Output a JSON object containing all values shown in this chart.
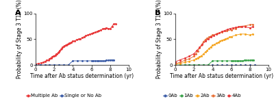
{
  "panel_A": {
    "title": "A",
    "xlabel": "Time after Ab status determination (yr)",
    "ylabel": "Probability of Stage 3 T1D (%)",
    "xlim": [
      0,
      10
    ],
    "ylim": [
      0,
      100
    ],
    "xticks": [
      0,
      2,
      4,
      6,
      8,
      10
    ],
    "yticks": [
      0,
      50,
      100
    ],
    "series": {
      "Multiple Ab": {
        "color": "#e8393a",
        "x": [
          0.0,
          0.3,
          0.6,
          0.8,
          1.0,
          1.2,
          1.4,
          1.5,
          1.6,
          1.7,
          1.8,
          1.9,
          2.0,
          2.1,
          2.2,
          2.3,
          2.4,
          2.5,
          2.6,
          2.7,
          2.8,
          2.9,
          3.0,
          3.1,
          3.2,
          3.3,
          3.4,
          3.5,
          3.6,
          3.7,
          3.8,
          4.0,
          4.2,
          4.4,
          4.6,
          4.8,
          5.0,
          5.2,
          5.4,
          5.6,
          5.8,
          6.0,
          6.2,
          6.4,
          6.6,
          6.8,
          7.0,
          7.2,
          7.4,
          7.6,
          7.8,
          8.0,
          8.2,
          8.4,
          8.6
        ],
        "y": [
          2,
          3,
          4,
          5,
          7,
          9,
          10,
          12,
          13,
          14,
          16,
          17,
          18,
          19,
          21,
          22,
          24,
          26,
          28,
          30,
          32,
          34,
          36,
          37,
          38,
          39,
          40,
          41,
          42,
          43,
          44,
          46,
          47,
          49,
          50,
          51,
          53,
          55,
          57,
          58,
          60,
          61,
          62,
          64,
          65,
          67,
          68,
          70,
          71,
          72,
          71,
          70,
          75,
          80,
          80
        ]
      },
      "Single or No Ab": {
        "color": "#3f5fa8",
        "x": [
          0.0,
          0.5,
          1.0,
          1.5,
          2.0,
          2.5,
          3.0,
          3.5,
          4.0,
          4.5,
          5.0,
          5.5,
          6.0,
          6.2,
          6.4,
          6.6,
          6.8,
          7.0,
          7.2,
          7.4,
          7.6,
          7.8,
          8.0,
          8.2,
          8.4
        ],
        "y": [
          0,
          0,
          0,
          0,
          0,
          0,
          0,
          0,
          8,
          8,
          8,
          8,
          8,
          8,
          8,
          8,
          8,
          8,
          8,
          8,
          9,
          9,
          10,
          10,
          10
        ]
      }
    },
    "legend": [
      "Multiple Ab",
      "Single or No Ab"
    ]
  },
  "panel_B": {
    "title": "B",
    "xlabel": "Time after Ab status determination (yr)",
    "ylabel": "Probability of Stage 3 T1D (%)",
    "xlim": [
      0,
      10
    ],
    "ylim": [
      0,
      100
    ],
    "xticks": [
      0,
      2,
      4,
      6,
      8,
      10
    ],
    "yticks": [
      0,
      50,
      100
    ],
    "series": {
      "0Ab": {
        "color": "#3f5fa8",
        "x": [
          0.0,
          0.5,
          1.0,
          1.5,
          2.0,
          2.5,
          3.0,
          3.5,
          4.0,
          4.5,
          5.0,
          5.5,
          6.0,
          6.5,
          7.0,
          7.5,
          8.0,
          8.5
        ],
        "y": [
          0,
          0,
          0,
          0,
          0,
          0,
          0,
          0,
          0,
          0,
          0,
          0,
          0,
          0,
          0,
          0,
          0,
          0
        ]
      },
      "1Ab": {
        "color": "#3da44d",
        "x": [
          0.0,
          0.5,
          1.0,
          1.5,
          2.0,
          2.5,
          3.0,
          3.5,
          4.0,
          4.5,
          5.0,
          5.5,
          6.0,
          6.2,
          6.4,
          6.6,
          6.8,
          7.0,
          7.2,
          7.4,
          7.6,
          7.8,
          8.0,
          8.2,
          8.4
        ],
        "y": [
          0,
          0,
          0,
          0,
          0,
          0,
          0,
          0,
          8,
          8,
          8,
          8,
          8,
          8,
          8,
          8,
          8,
          8,
          8,
          9,
          9,
          9,
          9,
          10,
          10
        ]
      },
      "2Ab": {
        "color": "#f5a623",
        "x": [
          0.0,
          0.5,
          1.0,
          1.5,
          2.0,
          2.2,
          2.4,
          2.6,
          2.8,
          3.0,
          3.2,
          3.4,
          3.6,
          3.8,
          4.0,
          4.2,
          4.4,
          4.6,
          4.8,
          5.0,
          5.2,
          5.4,
          5.6,
          5.8,
          6.0,
          6.5,
          7.0,
          7.5,
          8.0,
          8.3
        ],
        "y": [
          2,
          3,
          5,
          7,
          10,
          12,
          14,
          16,
          18,
          21,
          25,
          28,
          32,
          35,
          38,
          40,
          42,
          44,
          46,
          48,
          49,
          51,
          52,
          54,
          55,
          58,
          60,
          60,
          58,
          60
        ]
      },
      "3Ab": {
        "color": "#e8733a",
        "x": [
          0.0,
          0.5,
          1.0,
          1.5,
          2.0,
          2.2,
          2.4,
          2.6,
          2.8,
          3.0,
          3.2,
          3.4,
          3.6,
          3.8,
          4.0,
          4.5,
          5.0,
          5.5,
          6.0,
          6.5,
          7.0,
          7.5,
          8.0,
          8.3
        ],
        "y": [
          3,
          5,
          9,
          12,
          17,
          22,
          27,
          33,
          39,
          45,
          49,
          52,
          54,
          56,
          58,
          61,
          64,
          66,
          68,
          71,
          75,
          76,
          78,
          79
        ]
      },
      "4Ab": {
        "color": "#e8393a",
        "x": [
          0.0,
          0.5,
          1.0,
          1.5,
          2.0,
          2.3,
          2.6,
          2.9,
          3.2,
          3.5,
          3.8,
          4.1,
          4.4,
          4.7,
          5.0,
          5.3,
          5.6,
          5.9,
          6.2,
          6.5,
          6.8,
          7.1,
          7.5,
          8.0,
          8.3
        ],
        "y": [
          6,
          10,
          13,
          17,
          22,
          28,
          34,
          40,
          46,
          50,
          54,
          57,
          60,
          62,
          65,
          67,
          69,
          71,
          72,
          73,
          74,
          75,
          74,
          72,
          74
        ]
      }
    },
    "legend": [
      "0Ab",
      "1Ab",
      "2Ab",
      "3Ab",
      "4Ab"
    ]
  },
  "legend_colors": {
    "Multiple Ab": "#e8393a",
    "Single or No Ab": "#3f5fa8",
    "0Ab": "#3f5fa8",
    "1Ab": "#3da44d",
    "2Ab": "#f5a623",
    "3Ab": "#e8733a",
    "4Ab": "#e8393a"
  },
  "marker": "o",
  "markersize": 2.2,
  "linewidth": 0.7,
  "legend_fontsize": 5.0,
  "axis_label_fontsize": 5.5,
  "tick_fontsize": 5.0,
  "panel_label_fontsize": 8,
  "background_color": "#ffffff"
}
